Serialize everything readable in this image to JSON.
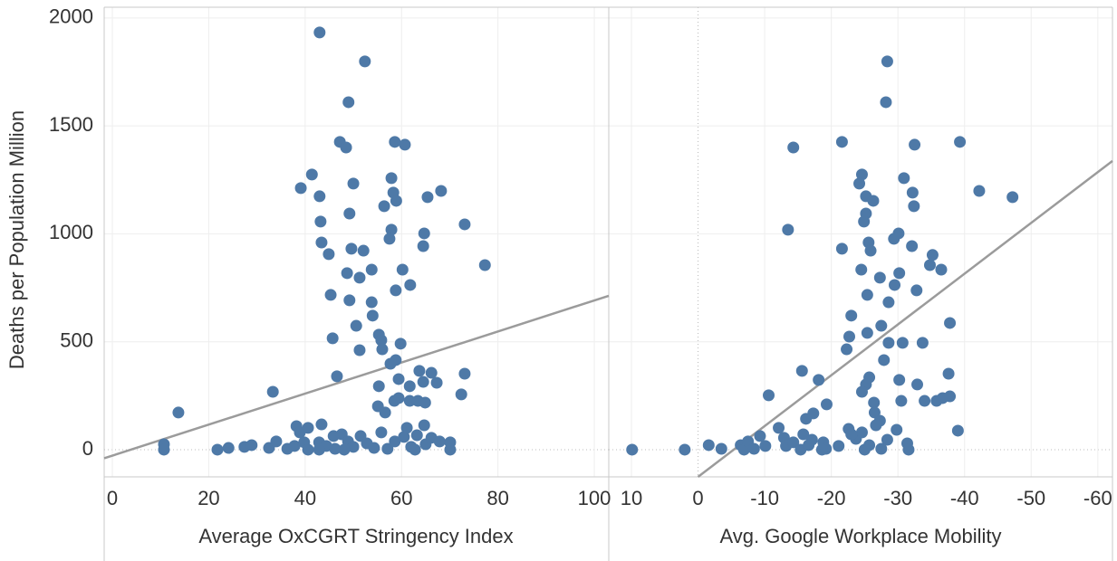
{
  "chart_data": [
    {
      "type": "scatter",
      "y_label": "Deaths per Population Million",
      "x_label": "Average OxCGRT Stringency Index",
      "color": "#4e79a7",
      "grid": true,
      "xlim": [
        -1.7,
        103
      ],
      "xticks": [
        0,
        20,
        40,
        60,
        80,
        100
      ],
      "ylim": [
        -126,
        2050
      ],
      "yticks": [
        0,
        500,
        1000,
        1500,
        2000
      ],
      "trendline": {
        "color": "#9b9b9b",
        "x": [
          -1.7,
          103
        ],
        "y": [
          -40,
          713
        ]
      },
      "x": [
        43,
        52.4,
        49,
        47.2,
        48.5,
        58.6,
        60.7,
        41.4,
        57.9,
        50,
        39.1,
        58.3,
        68.2,
        43,
        65.4,
        58.9,
        56.4,
        43.2,
        49.2,
        73.1,
        57.9,
        64.7,
        57.5,
        43.4,
        49.6,
        52.1,
        64.5,
        44.9,
        77.3,
        60.2,
        53.8,
        48.7,
        51.3,
        61.8,
        58.8,
        45.3,
        49.2,
        53.8,
        54,
        50.6,
        55.3,
        55.8,
        45.7,
        59.8,
        56,
        51.3,
        58.8,
        57.7,
        33.3,
        46.6,
        63.7,
        66.2,
        73.1,
        59.4,
        64.5,
        67.3,
        61.7,
        55.3,
        72.4,
        59.4,
        58.5,
        61.7,
        63.4,
        64.9,
        55.1,
        13.7,
        56.6,
        10.7,
        10.7,
        21.8,
        24.1,
        27.4,
        28.9,
        32.5,
        34,
        36.3,
        37.8,
        38.2,
        38.9,
        39.8,
        40.6,
        40.6,
        42.9,
        43.4,
        44.4,
        45.9,
        46.2,
        47.6,
        48.9,
        50,
        51.5,
        52.8,
        54.3,
        55.8,
        57.1,
        58.6,
        60.5,
        61.1,
        62,
        63.2,
        64.7,
        65,
        66.2,
        67.9,
        70.1,
        70.1,
        42.9,
        48.1,
        62.8
      ],
      "y": [
        1933,
        1799,
        1610,
        1426,
        1400,
        1426,
        1413,
        1275,
        1258,
        1233,
        1212,
        1191,
        1199,
        1174,
        1170,
        1153,
        1128,
        1057,
        1094,
        1044,
        1019,
        1002,
        977,
        960,
        931,
        922,
        943,
        906,
        855,
        834,
        834,
        818,
        797,
        763,
        738,
        717,
        692,
        683,
        621,
        574,
        533,
        507,
        516,
        491,
        465,
        461,
        415,
        398,
        268,
        340,
        365,
        356,
        352,
        327,
        314,
        310,
        294,
        294,
        256,
        239,
        226,
        226,
        226,
        218,
        201,
        172,
        172,
        25,
        0,
        0,
        8,
        13,
        21,
        8,
        38,
        4,
        17,
        109,
        80,
        34,
        0,
        101,
        34,
        117,
        17,
        63,
        4,
        71,
        38,
        13,
        63,
        29,
        8,
        80,
        4,
        38,
        59,
        101,
        13,
        67,
        113,
        25,
        55,
        38,
        34,
        0,
        0,
        0,
        0
      ]
    },
    {
      "type": "scatter",
      "x_label": "Avg. Google Workplace Mobility",
      "color": "#4e79a7",
      "grid": true,
      "xlim": [
        13.4,
        -62.2
      ],
      "xticks": [
        10,
        0,
        -10,
        -20,
        -30,
        -40,
        -50,
        -60
      ],
      "ylim": [
        -126,
        2050
      ],
      "yticks": [
        0,
        500,
        1000,
        1500,
        2000
      ],
      "trendline": {
        "color": "#9b9b9b",
        "x": [
          0,
          -62.2
        ],
        "y": [
          -126,
          1338
        ]
      },
      "x": [
        -28.4,
        -28.2,
        -21.6,
        -14.3,
        -39.3,
        -32.5,
        -24.6,
        -30.9,
        -24.2,
        -32.2,
        -42.2,
        -25.2,
        -47.2,
        -26.3,
        -32.4,
        -25.2,
        -24.9,
        -13.5,
        -30.1,
        -29.4,
        -25.6,
        -21.6,
        -25.9,
        -32.1,
        -35.2,
        -34.8,
        -36.5,
        -24.5,
        -30.2,
        -27.3,
        -29.5,
        -32.8,
        -25.4,
        -28.6,
        -23,
        -27.5,
        -37.8,
        -22.7,
        -25.4,
        -28.6,
        -30.7,
        -33.7,
        -22.3,
        -27.9,
        -10.6,
        -15.6,
        -18.1,
        -37.6,
        -25.7,
        -30.2,
        -32.9,
        -25.2,
        -24.6,
        -37.8,
        -36.7,
        -34,
        -35.8,
        -30.5,
        -26.4,
        -19.3,
        -26.5,
        -27.3,
        -17.3,
        -16.2,
        -39,
        9.9,
        2,
        -1.6,
        -3.5,
        -6.4,
        -6.9,
        -7.5,
        -8.4,
        -9.3,
        -10.1,
        -12.1,
        -12.9,
        -13.2,
        -14.3,
        -15.4,
        -15.8,
        -16.6,
        -17.1,
        -18.8,
        -19.2,
        -21.1,
        -22.6,
        -23.7,
        -24.6,
        -25.7,
        -26.7,
        -27.5,
        -28.4,
        -29.8,
        -31.4,
        -31.6,
        -25,
        -18.6,
        -23
      ],
      "y": [
        1799,
        1610,
        1426,
        1400,
        1426,
        1413,
        1275,
        1258,
        1233,
        1191,
        1199,
        1174,
        1170,
        1153,
        1128,
        1094,
        1057,
        1019,
        1002,
        977,
        960,
        931,
        922,
        943,
        902,
        855,
        834,
        834,
        818,
        797,
        763,
        738,
        717,
        683,
        621,
        574,
        587,
        524,
        541,
        495,
        495,
        495,
        465,
        415,
        252,
        365,
        323,
        352,
        335,
        323,
        302,
        302,
        268,
        247,
        239,
        226,
        226,
        226,
        218,
        210,
        172,
        134,
        168,
        143,
        88,
        0,
        0,
        21,
        4,
        21,
        0,
        38,
        4,
        63,
        17,
        101,
        55,
        17,
        34,
        0,
        71,
        21,
        46,
        34,
        4,
        17,
        96,
        50,
        80,
        21,
        113,
        4,
        46,
        92,
        29,
        0,
        0,
        0,
        71
      ]
    }
  ]
}
